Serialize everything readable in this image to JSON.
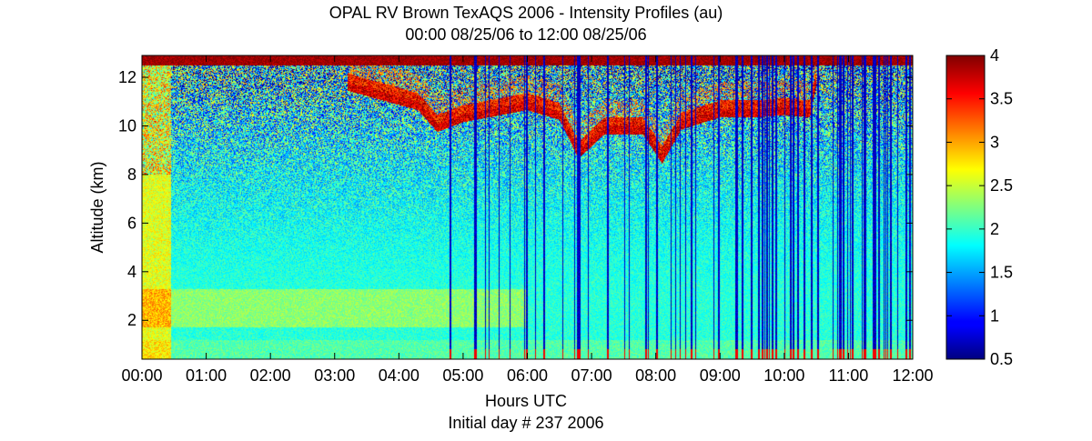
{
  "chart_data": {
    "type": "heatmap",
    "title": "OPAL RV Brown TexAQS 2006 - Intensity Profiles (au)",
    "subtitle": "00:00 08/25/06 to 12:00 08/25/06",
    "xlabel": "Hours UTC",
    "xlabel2": "Initial day # 237  2006",
    "ylabel": "Altitude (km)",
    "xlim": [
      0,
      12
    ],
    "ylim": [
      0.4,
      12.9
    ],
    "x_ticks": [
      0,
      1,
      2,
      3,
      4,
      5,
      6,
      7,
      8,
      9,
      10,
      11,
      12
    ],
    "x_tick_labels": [
      "00:00",
      "01:00",
      "02:00",
      "03:00",
      "04:00",
      "05:00",
      "06:00",
      "07:00",
      "08:00",
      "09:00",
      "10:00",
      "11:00",
      "12:00"
    ],
    "y_ticks": [
      2,
      4,
      6,
      8,
      10,
      12
    ],
    "y_tick_labels": [
      "2",
      "4",
      "6",
      "8",
      "10",
      "12"
    ],
    "colorbar": {
      "colormap": "jet",
      "clim": [
        0.5,
        4
      ],
      "ticks": [
        0.5,
        1,
        1.5,
        2,
        2.5,
        3,
        3.5,
        4
      ],
      "tick_labels": [
        "0.5",
        "1",
        "1.5",
        "2",
        "2.5",
        "3",
        "3.5",
        "4"
      ]
    },
    "features": {
      "near_field_high_intensity_until_hour": 0.45,
      "cirrus_layer": [
        {
          "x": 3.2,
          "y": 11.8
        },
        {
          "x": 4.3,
          "y": 11.0
        },
        {
          "x": 4.6,
          "y": 10.1
        },
        {
          "x": 5.0,
          "y": 10.5
        },
        {
          "x": 6.0,
          "y": 11.0
        },
        {
          "x": 6.5,
          "y": 10.6
        },
        {
          "x": 6.8,
          "y": 9.0
        },
        {
          "x": 7.2,
          "y": 10.0
        },
        {
          "x": 7.8,
          "y": 10.0
        },
        {
          "x": 8.1,
          "y": 8.8
        },
        {
          "x": 8.4,
          "y": 10.2
        },
        {
          "x": 9.0,
          "y": 10.7
        },
        {
          "x": 9.6,
          "y": 10.7
        },
        {
          "x": 10.0,
          "y": 10.8
        },
        {
          "x": 10.4,
          "y": 10.7
        },
        {
          "x": 10.5,
          "y": 12.0
        }
      ],
      "top_saturation_band_km": [
        12.5,
        12.9
      ],
      "low_intensity_profiles_start_hour": 4.5
    }
  }
}
